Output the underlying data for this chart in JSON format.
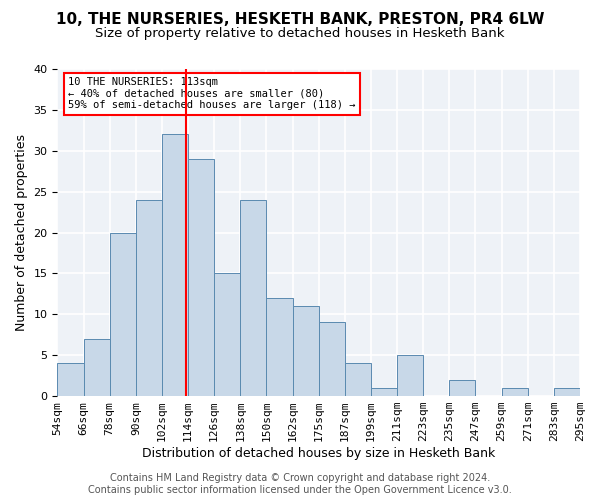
{
  "title1": "10, THE NURSERIES, HESKETH BANK, PRESTON, PR4 6LW",
  "title2": "Size of property relative to detached houses in Hesketh Bank",
  "xlabel": "Distribution of detached houses by size in Hesketh Bank",
  "ylabel": "Number of detached properties",
  "bar_color": "#c8d8e8",
  "bar_edge_color": "#5a8ab0",
  "bin_labels": [
    "54sqm",
    "66sqm",
    "78sqm",
    "90sqm",
    "102sqm",
    "114sqm",
    "126sqm",
    "138sqm",
    "150sqm",
    "162sqm",
    "175sqm",
    "187sqm",
    "199sqm",
    "211sqm",
    "223sqm",
    "235sqm",
    "247sqm",
    "259sqm",
    "271sqm",
    "283sqm",
    "295sqm"
  ],
  "heights": [
    4,
    7,
    20,
    24,
    32,
    29,
    15,
    24,
    12,
    11,
    9,
    4,
    1,
    5,
    0,
    2,
    0,
    1,
    0,
    1
  ],
  "ylim": [
    0,
    40
  ],
  "yticks": [
    0,
    5,
    10,
    15,
    20,
    25,
    30,
    35,
    40
  ],
  "annotation_text": "10 THE NURSERIES: 113sqm\n← 40% of detached houses are smaller (80)\n59% of semi-detached houses are larger (118) →",
  "footer1": "Contains HM Land Registry data © Crown copyright and database right 2024.",
  "footer2": "Contains public sector information licensed under the Open Government Licence v3.0.",
  "background_color": "#eef2f7",
  "grid_color": "#ffffff",
  "title1_fontsize": 11,
  "title2_fontsize": 9.5,
  "xlabel_fontsize": 9,
  "ylabel_fontsize": 9,
  "tick_fontsize": 8,
  "footer_fontsize": 7
}
